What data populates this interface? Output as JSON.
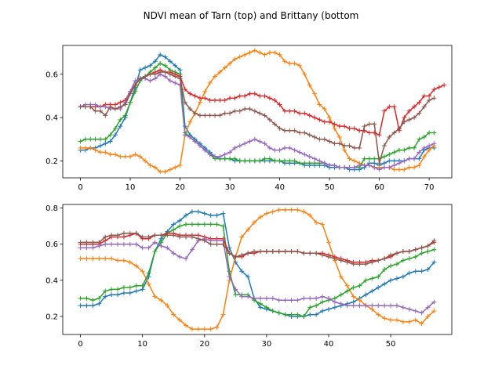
{
  "figure": {
    "title": "NDVI mean of Tarn (top) and Brittany (bottom"
  },
  "chart_data": [
    {
      "type": "line",
      "marker": "+",
      "title": "",
      "xlabel": "",
      "ylabel": "",
      "xlim": [
        -3.55,
        74.55
      ],
      "ylim": [
        0.122,
        0.733
      ],
      "xticks": [
        0,
        10,
        20,
        30,
        40,
        50,
        60,
        70
      ],
      "yticks": [
        0.2,
        0.4,
        0.6
      ],
      "ytick_labels": [
        "0.2",
        "0.4",
        "0.6"
      ],
      "grid": false,
      "series": [
        {
          "color": "#1f77b4",
          "x0": 0,
          "values": [
            0.25,
            0.25,
            0.26,
            0.26,
            0.27,
            0.28,
            0.29,
            0.32,
            0.36,
            0.4,
            0.47,
            0.54,
            0.62,
            0.63,
            0.64,
            0.66,
            0.69,
            0.68,
            0.66,
            0.64,
            0.62,
            0.36,
            0.32,
            0.3,
            0.28,
            0.26,
            0.24,
            0.22,
            0.21,
            0.21,
            0.21,
            0.2,
            0.2,
            0.2,
            0.2,
            0.2,
            0.2,
            0.2,
            0.2,
            0.2,
            0.2,
            0.19,
            0.19,
            0.19,
            0.19,
            0.18,
            0.18,
            0.18,
            0.18,
            0.18,
            0.17,
            0.17,
            0.17,
            0.17,
            0.16,
            0.16,
            0.16,
            0.17,
            0.19,
            0.19,
            0.18,
            0.19,
            0.2,
            0.2,
            0.2,
            0.2,
            0.21,
            0.21,
            0.21,
            0.25,
            0.26,
            0.26
          ]
        },
        {
          "color": "#ff7f0e",
          "x0": 0,
          "values": [
            0.26,
            0.26,
            0.26,
            0.25,
            0.24,
            0.24,
            0.23,
            0.23,
            0.22,
            0.22,
            0.22,
            0.23,
            0.22,
            0.2,
            0.18,
            0.17,
            0.15,
            0.15,
            0.16,
            0.17,
            0.18,
            0.32,
            0.38,
            0.42,
            0.47,
            0.52,
            0.56,
            0.59,
            0.61,
            0.63,
            0.65,
            0.67,
            0.68,
            0.69,
            0.7,
            0.71,
            0.7,
            0.69,
            0.7,
            0.7,
            0.69,
            0.66,
            0.65,
            0.65,
            0.64,
            0.6,
            0.55,
            0.51,
            0.46,
            0.44,
            0.4,
            0.35,
            0.31,
            0.25,
            0.21,
            0.2,
            0.19,
            0.18,
            0.18,
            0.17,
            0.17,
            0.17,
            0.17,
            0.16,
            0.16,
            0.16,
            0.17,
            0.17,
            0.18,
            0.22,
            0.25,
            0.27
          ]
        },
        {
          "color": "#2ca02c",
          "x0": 0,
          "values": [
            0.29,
            0.3,
            0.3,
            0.3,
            0.3,
            0.3,
            0.32,
            0.35,
            0.39,
            0.41,
            0.47,
            0.52,
            0.57,
            0.59,
            0.61,
            0.63,
            0.65,
            0.64,
            0.62,
            0.61,
            0.6,
            0.33,
            0.31,
            0.29,
            0.27,
            0.25,
            0.23,
            0.21,
            0.21,
            0.21,
            0.21,
            0.21,
            0.2,
            0.2,
            0.2,
            0.2,
            0.2,
            0.21,
            0.21,
            0.2,
            0.2,
            0.2,
            0.2,
            0.2,
            0.19,
            0.19,
            0.19,
            0.19,
            0.19,
            0.19,
            0.18,
            0.18,
            0.17,
            0.17,
            0.17,
            0.17,
            0.17,
            0.21,
            0.21,
            0.21,
            0.21,
            0.22,
            0.23,
            0.24,
            0.25,
            0.25,
            0.26,
            0.26,
            0.3,
            0.31,
            0.33,
            0.33
          ]
        },
        {
          "color": "#d62728",
          "x0": 0,
          "values": [
            0.45,
            0.45,
            0.45,
            0.45,
            0.45,
            0.46,
            0.46,
            0.46,
            0.47,
            0.48,
            0.52,
            0.55,
            0.58,
            0.59,
            0.6,
            0.61,
            0.62,
            0.61,
            0.61,
            0.6,
            0.59,
            0.53,
            0.51,
            0.5,
            0.49,
            0.49,
            0.48,
            0.48,
            0.48,
            0.48,
            0.49,
            0.49,
            0.5,
            0.5,
            0.51,
            0.51,
            0.5,
            0.5,
            0.49,
            0.48,
            0.46,
            0.43,
            0.43,
            0.43,
            0.42,
            0.42,
            0.41,
            0.4,
            0.39,
            0.38,
            0.38,
            0.37,
            0.36,
            0.36,
            0.35,
            0.35,
            0.34,
            0.34,
            0.33,
            0.33,
            0.32,
            0.43,
            0.45,
            0.45,
            0.34,
            0.4,
            0.43,
            0.45,
            0.47,
            0.5,
            0.5,
            0.53,
            0.54,
            0.55
          ]
        },
        {
          "color": "#9467bd",
          "x0": 0,
          "values": [
            0.45,
            0.46,
            0.46,
            0.46,
            0.45,
            0.45,
            0.44,
            0.44,
            0.44,
            0.47,
            0.52,
            0.57,
            0.58,
            0.58,
            0.57,
            0.58,
            0.6,
            0.59,
            0.57,
            0.56,
            0.55,
            0.32,
            0.31,
            0.29,
            0.27,
            0.25,
            0.23,
            0.22,
            0.22,
            0.23,
            0.24,
            0.26,
            0.27,
            0.28,
            0.29,
            0.3,
            0.29,
            0.28,
            0.26,
            0.25,
            0.25,
            0.26,
            0.26,
            0.25,
            0.24,
            0.23,
            0.22,
            0.21,
            0.2,
            0.19,
            0.18,
            0.18,
            0.17,
            0.17,
            0.17,
            0.17,
            0.18,
            0.18,
            0.18,
            0.17,
            0.16,
            0.17,
            0.17,
            0.18,
            0.19,
            0.2,
            0.21,
            0.21,
            0.24,
            0.26,
            0.27,
            0.28
          ]
        },
        {
          "color": "#8c564b",
          "x0": 0,
          "values": [
            0.45,
            0.45,
            0.45,
            0.43,
            0.43,
            0.41,
            0.45,
            0.44,
            0.45,
            0.46,
            0.51,
            0.55,
            0.58,
            0.59,
            0.6,
            0.6,
            0.61,
            0.61,
            0.6,
            0.59,
            0.58,
            0.47,
            0.44,
            0.42,
            0.41,
            0.41,
            0.41,
            0.41,
            0.41,
            0.42,
            0.42,
            0.43,
            0.43,
            0.44,
            0.44,
            0.43,
            0.42,
            0.41,
            0.39,
            0.37,
            0.35,
            0.34,
            0.34,
            0.34,
            0.33,
            0.33,
            0.32,
            0.31,
            0.3,
            0.3,
            0.29,
            0.28,
            0.28,
            0.27,
            0.27,
            0.26,
            0.26,
            0.36,
            0.37,
            0.37,
            0.19,
            0.27,
            0.31,
            0.33,
            0.35,
            0.38,
            0.39,
            0.4,
            0.42,
            0.45,
            0.48,
            0.49
          ]
        }
      ]
    },
    {
      "type": "line",
      "marker": "+",
      "title": "",
      "xlabel": "",
      "ylabel": "",
      "xlim": [
        -2.85,
        59.85
      ],
      "ylim": [
        0.1,
        0.82
      ],
      "xticks": [
        0,
        10,
        20,
        30,
        40,
        50
      ],
      "yticks": [
        0.2,
        0.4,
        0.6,
        0.8
      ],
      "ytick_labels": [
        "0.2",
        "0.4",
        "0.6",
        "0.8"
      ],
      "grid": false,
      "series": [
        {
          "color": "#1f77b4",
          "x0": 0,
          "values": [
            0.26,
            0.26,
            0.26,
            0.27,
            0.31,
            0.32,
            0.32,
            0.33,
            0.33,
            0.34,
            0.35,
            0.42,
            0.56,
            0.63,
            0.67,
            0.71,
            0.73,
            0.76,
            0.78,
            0.78,
            0.77,
            0.76,
            0.76,
            0.77,
            0.58,
            0.5,
            0.45,
            0.42,
            0.3,
            0.25,
            0.24,
            0.23,
            0.22,
            0.21,
            0.2,
            0.2,
            0.2,
            0.21,
            0.21,
            0.23,
            0.24,
            0.25,
            0.26,
            0.27,
            0.28,
            0.3,
            0.32,
            0.34,
            0.36,
            0.38,
            0.4,
            0.41,
            0.42,
            0.44,
            0.45,
            0.45,
            0.46,
            0.5
          ]
        },
        {
          "color": "#ff7f0e",
          "x0": 0,
          "values": [
            0.52,
            0.52,
            0.52,
            0.52,
            0.52,
            0.52,
            0.51,
            0.51,
            0.5,
            0.48,
            0.45,
            0.38,
            0.31,
            0.29,
            0.26,
            0.21,
            0.18,
            0.15,
            0.13,
            0.13,
            0.13,
            0.13,
            0.14,
            0.21,
            0.4,
            0.53,
            0.64,
            0.68,
            0.72,
            0.75,
            0.77,
            0.78,
            0.79,
            0.79,
            0.79,
            0.79,
            0.78,
            0.76,
            0.72,
            0.71,
            0.61,
            0.51,
            0.42,
            0.37,
            0.31,
            0.29,
            0.26,
            0.24,
            0.21,
            0.19,
            0.18,
            0.18,
            0.17,
            0.17,
            0.18,
            0.16,
            0.2,
            0.23
          ]
        },
        {
          "color": "#2ca02c",
          "x0": 0,
          "values": [
            0.3,
            0.3,
            0.29,
            0.3,
            0.34,
            0.35,
            0.35,
            0.36,
            0.36,
            0.37,
            0.37,
            0.44,
            0.56,
            0.61,
            0.66,
            0.68,
            0.7,
            0.71,
            0.71,
            0.71,
            0.71,
            0.71,
            0.71,
            0.7,
            0.45,
            0.32,
            0.32,
            0.32,
            0.29,
            0.27,
            0.25,
            0.23,
            0.22,
            0.21,
            0.21,
            0.21,
            0.2,
            0.25,
            0.26,
            0.28,
            0.29,
            0.3,
            0.32,
            0.34,
            0.36,
            0.37,
            0.4,
            0.41,
            0.42,
            0.46,
            0.48,
            0.49,
            0.51,
            0.52,
            0.53,
            0.55,
            0.56,
            0.57
          ]
        },
        {
          "color": "#d62728",
          "x0": 0,
          "values": [
            0.6,
            0.6,
            0.6,
            0.6,
            0.62,
            0.64,
            0.64,
            0.64,
            0.65,
            0.66,
            0.63,
            0.63,
            0.65,
            0.65,
            0.66,
            0.66,
            0.65,
            0.65,
            0.65,
            0.65,
            0.64,
            0.63,
            0.63,
            0.63,
            0.55,
            0.53,
            0.53,
            0.55,
            0.55,
            0.56,
            0.56,
            0.56,
            0.56,
            0.56,
            0.56,
            0.56,
            0.55,
            0.55,
            0.55,
            0.55,
            0.54,
            0.53,
            0.52,
            0.51,
            0.5,
            0.5,
            0.5,
            0.51,
            0.51,
            0.52,
            0.53,
            0.55,
            0.56,
            0.56,
            0.57,
            0.58,
            0.59,
            0.61
          ]
        },
        {
          "color": "#9467bd",
          "x0": 0,
          "values": [
            0.58,
            0.58,
            0.58,
            0.59,
            0.6,
            0.6,
            0.6,
            0.6,
            0.6,
            0.6,
            0.58,
            0.58,
            0.61,
            0.59,
            0.58,
            0.55,
            0.53,
            0.52,
            0.57,
            0.62,
            0.63,
            0.62,
            0.62,
            0.62,
            0.42,
            0.35,
            0.31,
            0.31,
            0.3,
            0.3,
            0.3,
            0.3,
            0.29,
            0.29,
            0.29,
            0.29,
            0.3,
            0.3,
            0.3,
            0.31,
            0.3,
            0.28,
            0.27,
            0.26,
            0.26,
            0.26,
            0.26,
            0.26,
            0.26,
            0.26,
            0.26,
            0.26,
            0.25,
            0.24,
            0.23,
            0.22,
            0.25,
            0.28
          ]
        },
        {
          "color": "#8c564b",
          "x0": 0,
          "values": [
            0.61,
            0.61,
            0.61,
            0.61,
            0.64,
            0.65,
            0.65,
            0.66,
            0.66,
            0.66,
            0.64,
            0.64,
            0.65,
            0.65,
            0.65,
            0.65,
            0.64,
            0.64,
            0.64,
            0.63,
            0.62,
            0.6,
            0.6,
            0.6,
            0.55,
            0.53,
            0.54,
            0.55,
            0.56,
            0.56,
            0.56,
            0.56,
            0.56,
            0.56,
            0.56,
            0.56,
            0.55,
            0.55,
            0.55,
            0.54,
            0.53,
            0.52,
            0.51,
            0.5,
            0.49,
            0.49,
            0.49,
            0.5,
            0.51,
            0.52,
            0.54,
            0.55,
            0.56,
            0.56,
            0.57,
            0.58,
            0.59,
            0.62
          ]
        }
      ]
    }
  ]
}
